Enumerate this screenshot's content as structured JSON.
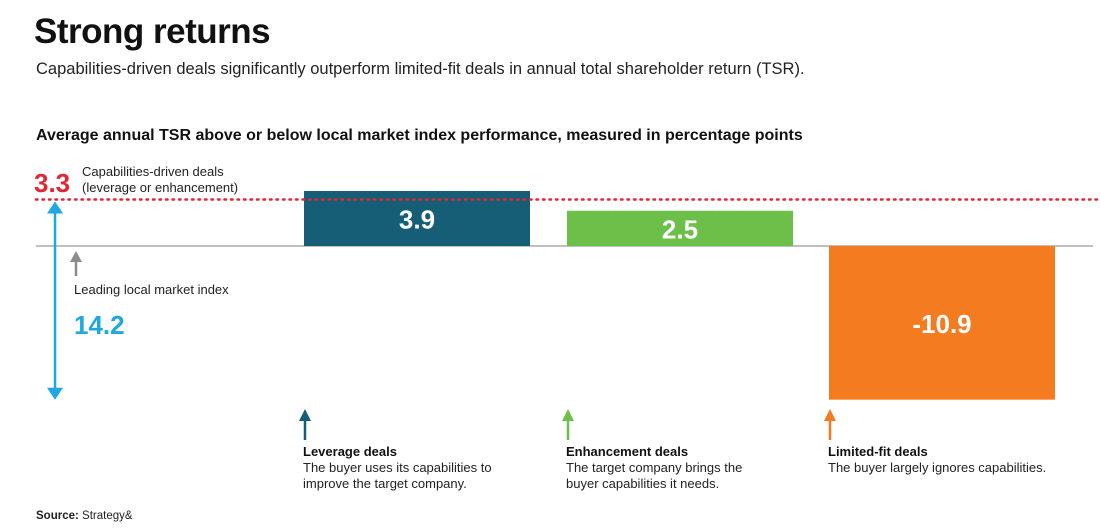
{
  "title": "Strong returns",
  "subtitle": "Capabilities-driven deals significantly outperform limited-fit deals in annual total shareholder return (TSR).",
  "chart_data": {
    "type": "bar",
    "title": "Average annual TSR above or below local market index performance, measured in percentage points",
    "categories": [
      "Leverage deals",
      "Enhancement deals",
      "Limited-fit deals"
    ],
    "values": [
      3.9,
      2.5,
      -10.9
    ],
    "value_labels": [
      "3.9",
      "2.5",
      "-10.9"
    ],
    "colors": [
      "#155e75",
      "#6cc04a",
      "#f47b20"
    ],
    "reference_line": {
      "value": 3.3,
      "value_label": "3.3",
      "label_line1": "Capabilities-driven deals",
      "label_line2": "(leverage or enhancement)",
      "color": "#e32636"
    },
    "baseline_label": "Leading local market index",
    "spread": {
      "value_label": "14.2",
      "color": "#1ea7e1"
    },
    "ylim": [
      -10.9,
      3.9
    ],
    "grid": false
  },
  "legend": [
    {
      "title": "Leverage deals",
      "line1": "The buyer uses its capabilities to",
      "line2": "improve the target company.",
      "color": "#155e75"
    },
    {
      "title": "Enhancement deals",
      "line1": "The target company brings the",
      "line2": "buyer capabilities it needs.",
      "color": "#6cc04a"
    },
    {
      "title": "Limited-fit deals",
      "line1": "The buyer largely ignores capabilities.",
      "line2": "",
      "color": "#f47b20"
    }
  ],
  "source": {
    "label": "Source:",
    "text": "Strategy&"
  }
}
